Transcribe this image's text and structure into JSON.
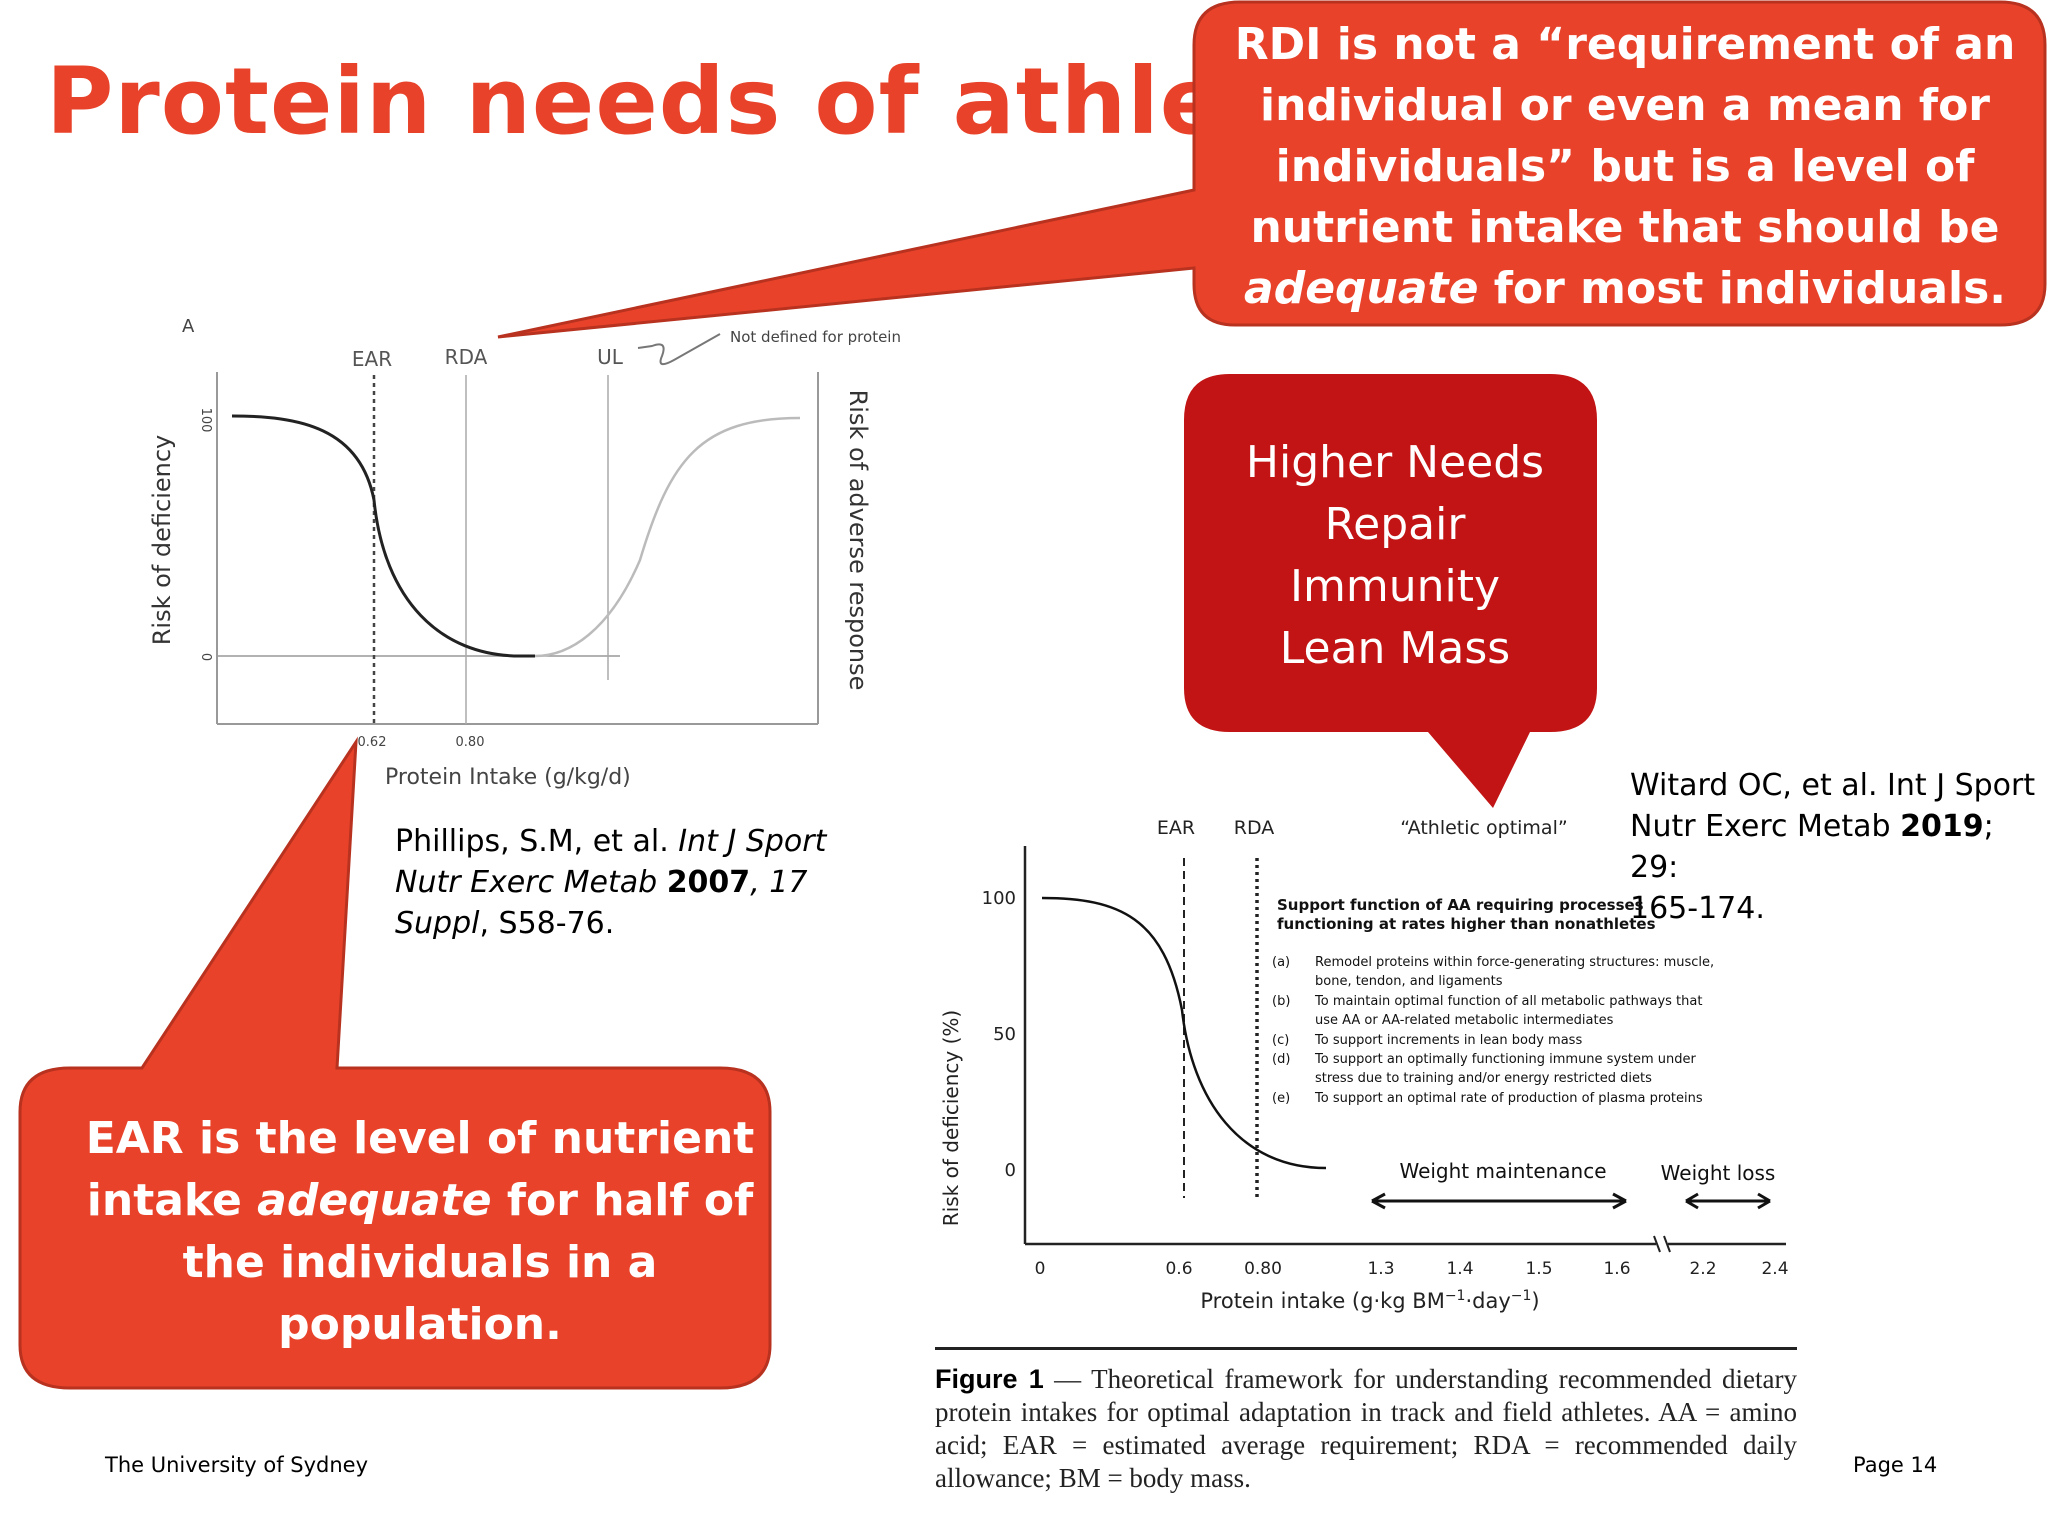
{
  "slide": {
    "title": "Protein needs of athletes",
    "footer_left": "The University of Sydney",
    "footer_right": "Page 14"
  },
  "colors": {
    "accent": "#e8432a",
    "callout_orange": "#e8432a",
    "callout_red": "#c21414"
  },
  "callouts": {
    "rdi_lines": [
      "RDI is not a “requirement of an",
      "individual or even a mean for",
      "individuals” but is a level of",
      "nutrient intake that should be"
    ],
    "rdi_last_em": "adequate",
    "rdi_last_rest": " for most individuals.",
    "needs_lines": [
      "Higher Needs",
      "Repair",
      "Immunity",
      "Lean Mass"
    ],
    "ear_line1": "EAR is the level of nutrient",
    "ear_line2_pre": "intake ",
    "ear_line2_em": "adequate",
    "ear_line2_post": " for half of",
    "ear_line3": "the individuals in a",
    "ear_line4": "population."
  },
  "citations": {
    "phillips_line1_pre": "Phillips, S.M, et al. ",
    "phillips_line1_em": "Int J Sport",
    "phillips_line2_em": "Nutr Exerc Metab ",
    "phillips_year": "2007",
    "phillips_line2_post": ", 17",
    "phillips_line3_em": "Suppl",
    "phillips_line3_post": ", S58-76.",
    "witard_line1": "Witard OC, et al. Int J Sport",
    "witard_line2_pre": "Nutr Exerc Metab ",
    "witard_year": "2019",
    "witard_line2_post": "; 29:",
    "witard_line3": "165-174."
  },
  "caption": {
    "label": "Figure 1",
    "text": " — Theoretical framework for understanding recommended dietary protein intakes for optimal adaptation in track and field athletes. AA = amino acid; EAR = estimated average requirement; RDA = recommended daily allowance; BM = body mass."
  },
  "chart_data": [
    {
      "type": "line",
      "panel_label": "A",
      "xlabel": "Protein Intake (g/kg/d)",
      "ylabel": "Risk of deficiency",
      "y2label": "Risk of adverse response",
      "yticks": [
        "100",
        "0"
      ],
      "xticks": [
        "0.62",
        "0.80"
      ],
      "markers": [
        {
          "label": "EAR",
          "x": 0.62
        },
        {
          "label": "RDA",
          "x": 0.8
        },
        {
          "label": "UL",
          "note": "Not defined for protein"
        }
      ],
      "series": [
        {
          "values_desc": "risk of deficiency",
          "points": [
            [
              0.3,
              100
            ],
            [
              0.5,
              80
            ],
            [
              0.62,
              50
            ],
            [
              0.7,
              18
            ],
            [
              0.8,
              0
            ],
            [
              0.86,
              0
            ]
          ]
        },
        {
          "values_desc": "risk of adverse response",
          "points": [
            [
              0.86,
              0
            ],
            [
              1.05,
              12
            ],
            [
              1.22,
              60
            ],
            [
              1.35,
              95
            ],
            [
              1.5,
              100
            ]
          ]
        }
      ],
      "ylim": [
        0,
        100
      ]
    },
    {
      "type": "line",
      "xlabel_pre": "Protein intake (g·kg BM",
      "xlabel_mid": "·day",
      "xlabel_post": ")",
      "xlabel_sup": "−1",
      "ylabel": "Risk of deficiency (%)",
      "yticks": [
        "100",
        "50",
        "0"
      ],
      "xticks": [
        "0",
        "0.6",
        "0.80",
        "1.3",
        "1.4",
        "1.5",
        "1.6",
        "2.2",
        "2.4"
      ],
      "markers": [
        {
          "label": "EAR",
          "x": 0.6
        },
        {
          "label": "RDA",
          "x": 0.8
        },
        {
          "label": "“Athletic optimal”"
        }
      ],
      "series": [
        {
          "points": [
            [
              0,
              100
            ],
            [
              0.3,
              96
            ],
            [
              0.5,
              78
            ],
            [
              0.6,
              48
            ],
            [
              0.7,
              22
            ],
            [
              0.8,
              8
            ],
            [
              1.0,
              1
            ],
            [
              1.2,
              0
            ]
          ]
        }
      ],
      "ylim": [
        0,
        100
      ],
      "support_title": [
        "Support function of AA requiring processes",
        "functioning at rates higher than nonathletes"
      ],
      "support_items": [
        {
          "key": "(a)",
          "lines": [
            "Remodel proteins within force-generating structures: muscle,",
            "bone, tendon, and ligaments"
          ]
        },
        {
          "key": "(b)",
          "lines": [
            "To maintain optimal function of all metabolic pathways that",
            "use AA or AA-related metabolic intermediates"
          ]
        },
        {
          "key": "(c)",
          "lines": [
            "To support increments in lean body mass"
          ]
        },
        {
          "key": "(d)",
          "lines": [
            "To support an optimally functioning immune system under",
            "stress due to training and/or energy restricted diets"
          ]
        },
        {
          "key": "(e)",
          "lines": [
            "To support an optimal rate of production of plasma proteins"
          ]
        }
      ],
      "ranges": [
        {
          "label": "Weight maintenance",
          "from": 1.3,
          "to": 1.6
        },
        {
          "label": "Weight loss",
          "from": 2.2,
          "to": 2.4
        }
      ]
    }
  ]
}
